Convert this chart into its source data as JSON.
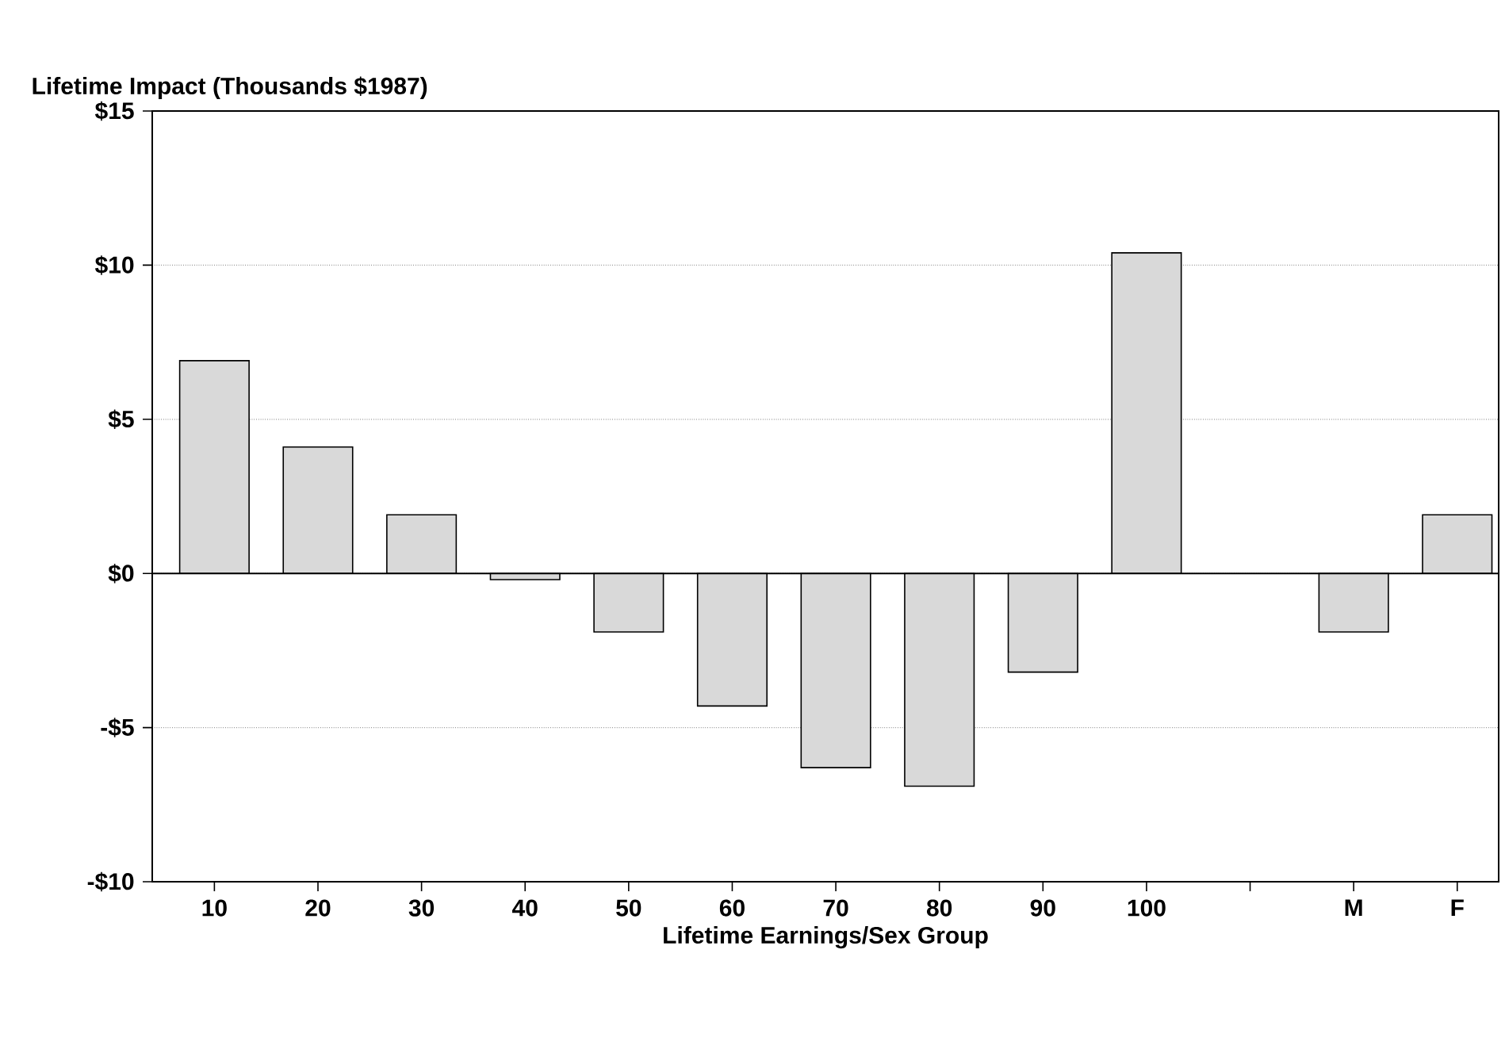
{
  "chart_data": {
    "type": "bar",
    "ylabel": "Lifetime Impact (Thousands $1987)",
    "xlabel": "Lifetime Earnings/Sex Group",
    "categories": [
      "10",
      "20",
      "30",
      "40",
      "50",
      "60",
      "70",
      "80",
      "90",
      "100",
      null,
      "M",
      "F"
    ],
    "values": [
      6.9,
      4.1,
      1.9,
      -0.2,
      -1.9,
      -4.3,
      -6.3,
      -6.9,
      -3.2,
      10.4,
      null,
      -1.9,
      1.9
    ],
    "color": "#d9d9d9",
    "ylim": [
      -10,
      15
    ],
    "yticks": [
      {
        "value": -10,
        "label": "-$10"
      },
      {
        "value": -5,
        "label": "-$5"
      },
      {
        "value": 0,
        "label": "$0"
      },
      {
        "value": 5,
        "label": "$5"
      },
      {
        "value": 10,
        "label": "$10"
      },
      {
        "value": 15,
        "label": "$15"
      }
    ],
    "grid": "y",
    "ref_lines": [
      {
        "axis": "y",
        "value": 0
      }
    ]
  }
}
